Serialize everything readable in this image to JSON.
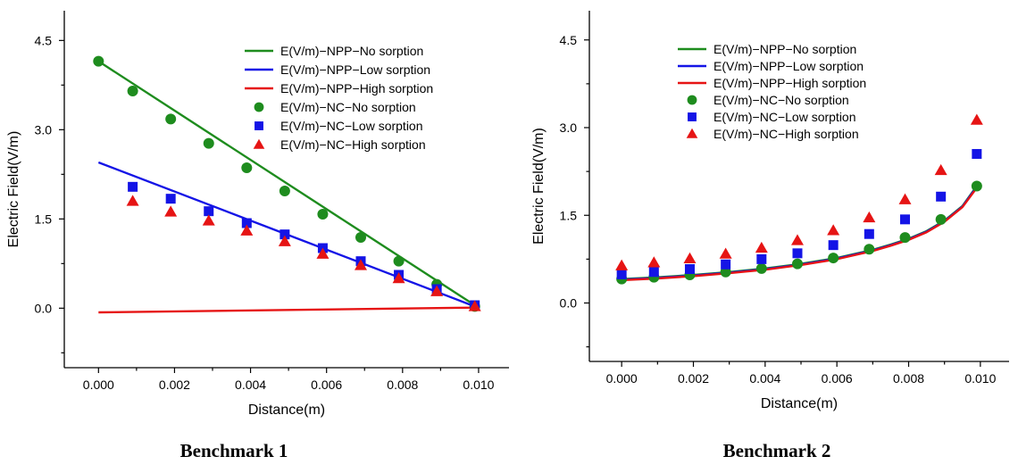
{
  "colors": {
    "green": "#1e8c1e",
    "blue": "#1414e6",
    "red": "#e61414"
  },
  "chart_data": [
    {
      "type": "line+scatter",
      "caption": "Benchmark 1",
      "xlabel": "Distance(m)",
      "ylabel": "Electric Field(V/m)",
      "xlim": [
        -0.0009,
        0.0108
      ],
      "ylim": [
        -1.0,
        5.0
      ],
      "xticks": [
        0.0,
        0.002,
        0.004,
        0.006,
        0.008,
        0.01
      ],
      "xtick_labels": [
        "0.000",
        "0.002",
        "0.004",
        "0.006",
        "0.008",
        "0.010"
      ],
      "yticks": [
        0.0,
        1.5,
        3.0,
        4.5
      ],
      "ytick_labels": [
        "0.0",
        "1.5",
        "3.0",
        "4.5"
      ],
      "grid": false,
      "legend_position": "top-right",
      "series": [
        {
          "name": "E(V/m)−NPP−No sorption",
          "kind": "line",
          "color": "green",
          "x": [
            0.0,
            0.0099
          ],
          "y": [
            4.15,
            0.05
          ]
        },
        {
          "name": "E(V/m)−NPP−Low sorption",
          "kind": "line",
          "color": "blue",
          "x": [
            0.0,
            0.0099
          ],
          "y": [
            2.45,
            0.03
          ]
        },
        {
          "name": "E(V/m)−NPP−High sorption",
          "kind": "line",
          "color": "red",
          "x": [
            0.0,
            0.0099
          ],
          "y": [
            -0.07,
            0.01
          ]
        },
        {
          "name": "E(V/m)−NC−No sorption",
          "kind": "circle",
          "color": "green",
          "x": [
            0.0,
            0.0009,
            0.0019,
            0.0029,
            0.0039,
            0.0049,
            0.0059,
            0.0069,
            0.0079,
            0.0089,
            0.0099
          ],
          "y": [
            4.15,
            3.65,
            3.18,
            2.77,
            2.36,
            1.97,
            1.58,
            1.19,
            0.79,
            0.4,
            0.03
          ]
        },
        {
          "name": "E(V/m)−NC−Low sorption",
          "kind": "square",
          "color": "blue",
          "x": [
            0.0009,
            0.0019,
            0.0029,
            0.0039,
            0.0049,
            0.0059,
            0.0069,
            0.0079,
            0.0089,
            0.0099
          ],
          "y": [
            2.04,
            1.84,
            1.63,
            1.43,
            1.24,
            1.01,
            0.79,
            0.56,
            0.32,
            0.05
          ]
        },
        {
          "name": "E(V/m)−NC−High sorption",
          "kind": "triangle",
          "color": "red",
          "x": [
            0.0009,
            0.0019,
            0.0029,
            0.0039,
            0.0049,
            0.0059,
            0.0069,
            0.0079,
            0.0089,
            0.0099
          ],
          "y": [
            1.8,
            1.62,
            1.47,
            1.3,
            1.12,
            0.91,
            0.72,
            0.5,
            0.28,
            0.03
          ]
        }
      ]
    },
    {
      "type": "line+scatter",
      "caption": "Benchmark 2",
      "xlabel": "Distance(m)",
      "ylabel": "Electric Field(V/m)",
      "xlim": [
        -0.0009,
        0.0108
      ],
      "ylim": [
        -1.0,
        5.0
      ],
      "xticks": [
        0.0,
        0.002,
        0.004,
        0.006,
        0.008,
        0.01
      ],
      "xtick_labels": [
        "0.000",
        "0.002",
        "0.004",
        "0.006",
        "0.008",
        "0.010"
      ],
      "yticks": [
        0.0,
        1.5,
        3.0,
        4.5
      ],
      "ytick_labels": [
        "0.0",
        "1.5",
        "3.0",
        "4.5"
      ],
      "grid": false,
      "legend_position": "top-left",
      "series": [
        {
          "name": "E(V/m)−NPP−No sorption",
          "kind": "line",
          "color": "green",
          "x": [
            0.0,
            0.001,
            0.002,
            0.003,
            0.004,
            0.005,
            0.006,
            0.007,
            0.0075,
            0.008,
            0.0085,
            0.009,
            0.0095,
            0.0099
          ],
          "y": [
            0.41,
            0.44,
            0.48,
            0.53,
            0.59,
            0.67,
            0.77,
            0.91,
            1.0,
            1.1,
            1.23,
            1.41,
            1.66,
            2.0
          ]
        },
        {
          "name": "E(V/m)−NPP−Low sorption",
          "kind": "line",
          "color": "blue",
          "x": [
            0.0,
            0.001,
            0.002,
            0.003,
            0.004,
            0.005,
            0.006,
            0.007,
            0.0075,
            0.008,
            0.0085,
            0.009,
            0.0095,
            0.0099
          ],
          "y": [
            0.4,
            0.43,
            0.47,
            0.52,
            0.58,
            0.66,
            0.76,
            0.9,
            0.99,
            1.09,
            1.22,
            1.4,
            1.65,
            1.99
          ]
        },
        {
          "name": "E(V/m)−NPP−High sorption",
          "kind": "line",
          "color": "red",
          "x": [
            0.0,
            0.001,
            0.002,
            0.003,
            0.004,
            0.005,
            0.006,
            0.007,
            0.0075,
            0.008,
            0.0085,
            0.009,
            0.0095,
            0.0099
          ],
          "y": [
            0.39,
            0.42,
            0.46,
            0.51,
            0.57,
            0.65,
            0.75,
            0.89,
            0.98,
            1.08,
            1.21,
            1.39,
            1.64,
            1.97
          ]
        },
        {
          "name": "E(V/m)−NC−No sorption",
          "kind": "circle",
          "color": "green",
          "x": [
            0.0,
            0.0009,
            0.0019,
            0.0029,
            0.0039,
            0.0049,
            0.0059,
            0.0069,
            0.0079,
            0.0089,
            0.0099
          ],
          "y": [
            0.41,
            0.44,
            0.48,
            0.53,
            0.59,
            0.67,
            0.77,
            0.92,
            1.12,
            1.43,
            2.0
          ]
        },
        {
          "name": "E(V/m)−NC−Low sorption",
          "kind": "square",
          "color": "blue",
          "x": [
            0.0,
            0.0009,
            0.0019,
            0.0029,
            0.0039,
            0.0049,
            0.0059,
            0.0069,
            0.0079,
            0.0089,
            0.0099
          ],
          "y": [
            0.49,
            0.53,
            0.58,
            0.66,
            0.75,
            0.85,
            0.99,
            1.18,
            1.43,
            1.82,
            2.55
          ]
        },
        {
          "name": "E(V/m)−NC−High sorption",
          "kind": "triangle",
          "color": "red",
          "x": [
            0.0,
            0.0009,
            0.0019,
            0.0029,
            0.0039,
            0.0049,
            0.0059,
            0.0069,
            0.0079,
            0.0089,
            0.0099
          ],
          "y": [
            0.64,
            0.69,
            0.76,
            0.84,
            0.94,
            1.07,
            1.24,
            1.46,
            1.77,
            2.27,
            3.13
          ]
        }
      ]
    }
  ]
}
